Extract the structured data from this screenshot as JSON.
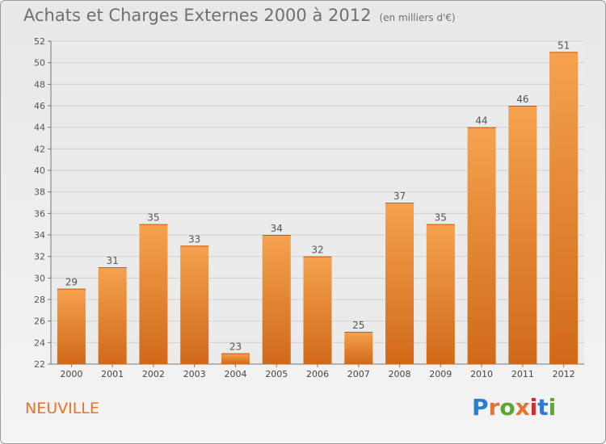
{
  "title": "Achats et Charges Externes 2000 à 2012",
  "subtitle": "(en milliers d'€)",
  "place": "NEUVILLE",
  "logo": {
    "letters": [
      "P",
      "r",
      "o",
      "x",
      "i",
      "t",
      "i"
    ],
    "colors": [
      "#2c7cd1",
      "#e8722a",
      "#5aa832",
      "#e8722a",
      "#d12c2c",
      "#2c7cd1",
      "#5aa832"
    ]
  },
  "colors": {
    "bar": "#f0923a",
    "bar_dark": "#d86e1c",
    "text": "#6f6f6f",
    "accent": "#e8722a"
  },
  "chart_data": {
    "type": "bar",
    "title": "Achats et Charges Externes 2000 à 2012",
    "subtitle": "(en milliers d'€)",
    "categories": [
      "2000",
      "2001",
      "2002",
      "2003",
      "2004",
      "2005",
      "2006",
      "2007",
      "2008",
      "2009",
      "2010",
      "2011",
      "2012"
    ],
    "values": [
      29,
      31,
      35,
      33,
      23,
      34,
      32,
      25,
      37,
      35,
      44,
      46,
      51
    ],
    "ylim": [
      22,
      52
    ],
    "yticks": [
      22,
      24,
      26,
      28,
      30,
      32,
      34,
      36,
      38,
      40,
      42,
      44,
      46,
      48,
      50,
      52
    ],
    "grid": true,
    "xlabel": "",
    "ylabel": ""
  }
}
